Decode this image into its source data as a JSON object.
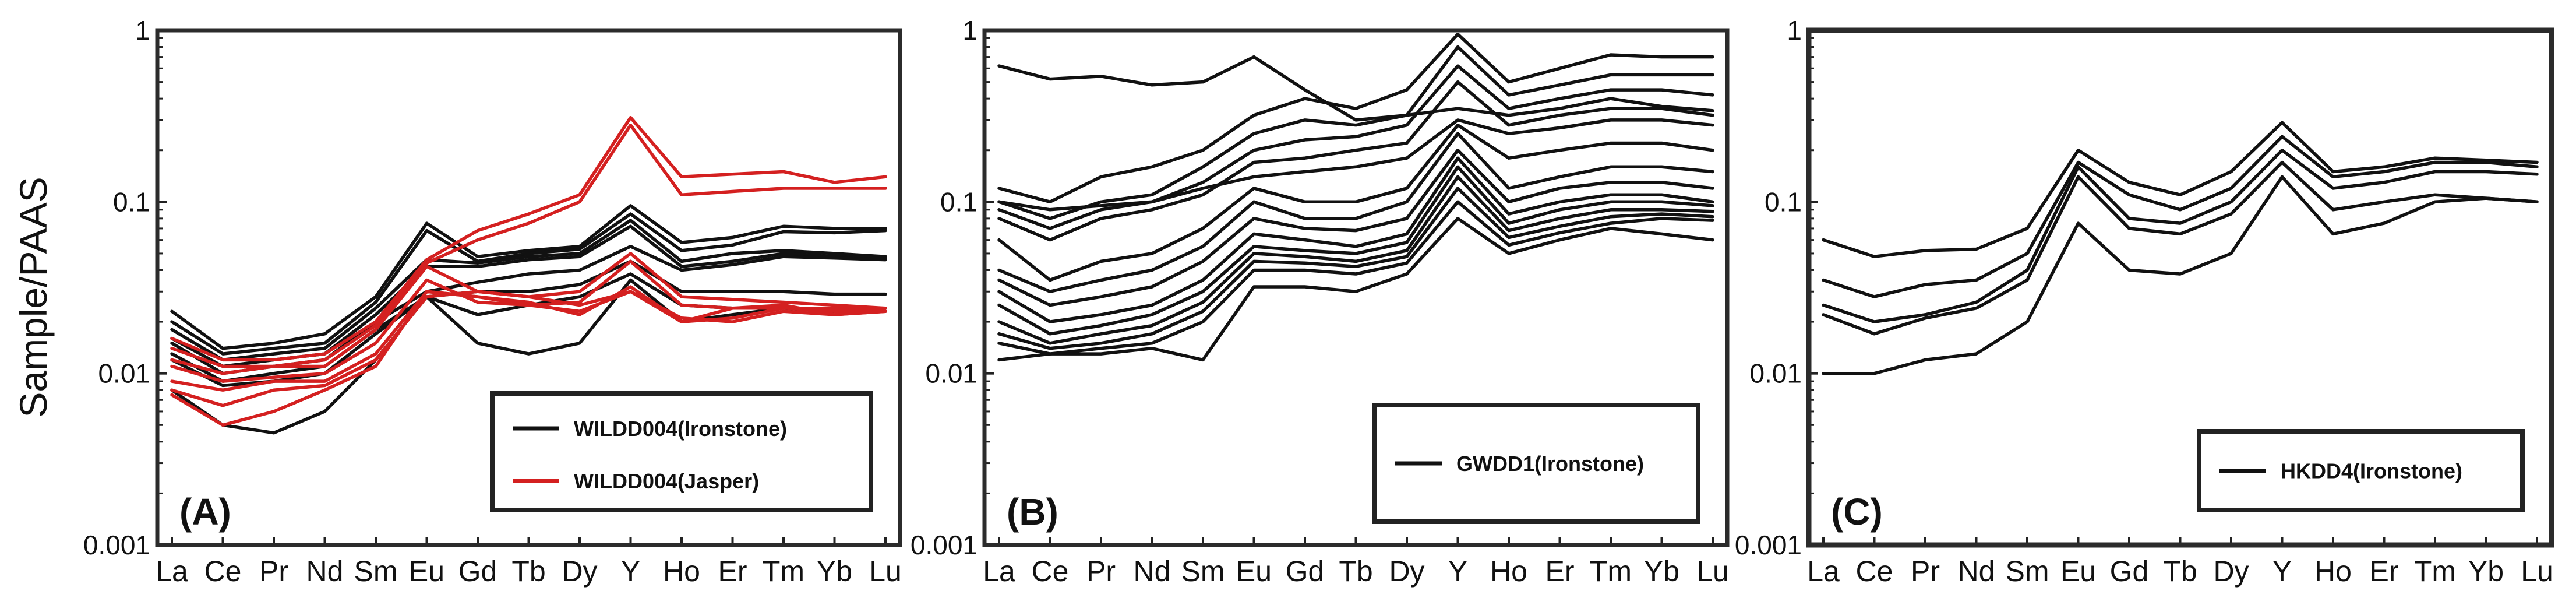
{
  "y_axis_label": "Sample/PAAS",
  "colors": {
    "ironstone": "#111111",
    "jasper": "#d42020",
    "frame": "#2b2b2b"
  },
  "chart_data": [
    {
      "type": "line",
      "panel_label": "(A)",
      "categories": [
        "La",
        "Ce",
        "Pr",
        "Nd",
        "Sm",
        "Eu",
        "Gd",
        "Tb",
        "Dy",
        "Y",
        "Ho",
        "Er",
        "Tm",
        "Yb",
        "Lu"
      ],
      "ylim": [
        0.001,
        1
      ],
      "yscale": "log",
      "y_ticks": [
        "1",
        "0.1",
        "0.01",
        "0.001"
      ],
      "legend_position": "bottom-right",
      "legend": [
        {
          "label": "WILDD004(Ironstone)",
          "color": "#111111"
        },
        {
          "label": "WILDD004(Jasper)",
          "color": "#d42020"
        }
      ],
      "series": [
        {
          "group": "ironstone",
          "values": [
            0.023,
            0.014,
            0.015,
            0.017,
            0.028,
            0.075,
            0.048,
            0.052,
            0.055,
            0.095,
            0.058,
            0.062,
            0.072,
            0.07,
            0.07
          ]
        },
        {
          "group": "ironstone",
          "values": [
            0.02,
            0.013,
            0.014,
            0.015,
            0.026,
            0.068,
            0.045,
            0.05,
            0.053,
            0.085,
            0.052,
            0.056,
            0.067,
            0.066,
            0.068
          ]
        },
        {
          "group": "ironstone",
          "values": [
            0.018,
            0.012,
            0.013,
            0.014,
            0.024,
            0.046,
            0.044,
            0.048,
            0.05,
            0.078,
            0.045,
            0.05,
            0.052,
            0.05,
            0.048
          ]
        },
        {
          "group": "ironstone",
          "values": [
            0.016,
            0.011,
            0.012,
            0.013,
            0.022,
            0.042,
            0.042,
            0.046,
            0.048,
            0.072,
            0.042,
            0.045,
            0.05,
            0.048,
            0.047
          ]
        },
        {
          "group": "ironstone",
          "values": [
            0.015,
            0.01,
            0.011,
            0.012,
            0.02,
            0.03,
            0.034,
            0.038,
            0.04,
            0.055,
            0.04,
            0.043,
            0.048,
            0.047,
            0.046
          ]
        },
        {
          "group": "ironstone",
          "values": [
            0.013,
            0.009,
            0.01,
            0.011,
            0.018,
            0.028,
            0.03,
            0.03,
            0.033,
            0.045,
            0.03,
            0.03,
            0.03,
            0.029,
            0.029
          ]
        },
        {
          "group": "ironstone",
          "values": [
            0.012,
            0.0085,
            0.009,
            0.01,
            0.017,
            0.028,
            0.022,
            0.025,
            0.028,
            0.038,
            0.025,
            0.024,
            0.024,
            0.023,
            0.023
          ]
        },
        {
          "group": "ironstone",
          "values": [
            0.008,
            0.005,
            0.0045,
            0.006,
            0.012,
            0.028,
            0.015,
            0.013,
            0.015,
            0.035,
            0.02,
            0.022,
            0.024,
            0.023,
            0.023
          ]
        },
        {
          "group": "jasper",
          "values": [
            0.016,
            0.012,
            0.012,
            0.013,
            0.02,
            0.046,
            0.068,
            0.085,
            0.11,
            0.31,
            0.14,
            0.145,
            0.15,
            0.13,
            0.14
          ]
        },
        {
          "group": "jasper",
          "values": [
            0.014,
            0.011,
            0.011,
            0.012,
            0.019,
            0.044,
            0.06,
            0.075,
            0.1,
            0.28,
            0.11,
            0.115,
            0.12,
            0.12,
            0.12
          ]
        },
        {
          "group": "jasper",
          "values": [
            0.012,
            0.01,
            0.011,
            0.011,
            0.018,
            0.042,
            0.03,
            0.028,
            0.03,
            0.05,
            0.028,
            0.027,
            0.026,
            0.025,
            0.024
          ]
        },
        {
          "group": "jasper",
          "values": [
            0.011,
            0.009,
            0.0095,
            0.01,
            0.015,
            0.035,
            0.026,
            0.025,
            0.026,
            0.045,
            0.025,
            0.024,
            0.024,
            0.023,
            0.023
          ]
        },
        {
          "group": "jasper",
          "values": [
            0.009,
            0.008,
            0.009,
            0.009,
            0.013,
            0.03,
            0.028,
            0.026,
            0.022,
            0.032,
            0.02,
            0.024,
            0.025,
            0.022,
            0.023
          ]
        },
        {
          "group": "jasper",
          "values": [
            0.008,
            0.0065,
            0.008,
            0.0085,
            0.012,
            0.028,
            0.03,
            0.028,
            0.025,
            0.03,
            0.02,
            0.021,
            0.024,
            0.024,
            0.024
          ]
        },
        {
          "group": "jasper",
          "values": [
            0.0075,
            0.005,
            0.006,
            0.008,
            0.011,
            0.03,
            0.028,
            0.025,
            0.023,
            0.03,
            0.021,
            0.02,
            0.023,
            0.022,
            0.023
          ]
        }
      ]
    },
    {
      "type": "line",
      "panel_label": "(B)",
      "categories": [
        "La",
        "Ce",
        "Pr",
        "Nd",
        "Sm",
        "Eu",
        "Gd",
        "Tb",
        "Dy",
        "Y",
        "Ho",
        "Er",
        "Tm",
        "Yb",
        "Lu"
      ],
      "ylim": [
        0.001,
        1
      ],
      "yscale": "log",
      "y_ticks": [
        "1",
        "0.1",
        "0.01",
        "0.001"
      ],
      "legend_position": "top-right",
      "legend": [
        {
          "label": "GWDD1(Ironstone)",
          "color": "#111111"
        }
      ],
      "series": [
        {
          "group": "ironstone",
          "values": [
            0.62,
            0.52,
            0.54,
            0.48,
            0.5,
            0.7,
            0.45,
            0.3,
            0.32,
            0.35,
            0.32,
            0.35,
            0.4,
            0.36,
            0.34
          ]
        },
        {
          "group": "ironstone",
          "values": [
            0.12,
            0.1,
            0.14,
            0.16,
            0.2,
            0.32,
            0.4,
            0.35,
            0.45,
            0.95,
            0.5,
            0.6,
            0.72,
            0.7,
            0.7
          ]
        },
        {
          "group": "ironstone",
          "values": [
            0.1,
            0.08,
            0.1,
            0.11,
            0.16,
            0.25,
            0.3,
            0.28,
            0.32,
            0.8,
            0.42,
            0.48,
            0.55,
            0.55,
            0.55
          ]
        },
        {
          "group": "ironstone",
          "values": [
            0.09,
            0.07,
            0.09,
            0.1,
            0.13,
            0.2,
            0.23,
            0.24,
            0.28,
            0.62,
            0.35,
            0.4,
            0.45,
            0.45,
            0.42
          ]
        },
        {
          "group": "ironstone",
          "values": [
            0.08,
            0.06,
            0.08,
            0.09,
            0.11,
            0.17,
            0.18,
            0.2,
            0.22,
            0.5,
            0.28,
            0.32,
            0.35,
            0.35,
            0.32
          ]
        },
        {
          "group": "ironstone",
          "values": [
            0.1,
            0.09,
            0.095,
            0.1,
            0.12,
            0.14,
            0.15,
            0.16,
            0.18,
            0.3,
            0.25,
            0.27,
            0.3,
            0.3,
            0.28
          ]
        },
        {
          "group": "ironstone",
          "values": [
            0.06,
            0.035,
            0.045,
            0.05,
            0.07,
            0.12,
            0.1,
            0.1,
            0.12,
            0.28,
            0.18,
            0.2,
            0.22,
            0.22,
            0.2
          ]
        },
        {
          "group": "ironstone",
          "values": [
            0.04,
            0.03,
            0.035,
            0.04,
            0.055,
            0.1,
            0.08,
            0.08,
            0.1,
            0.25,
            0.12,
            0.14,
            0.16,
            0.16,
            0.15
          ]
        },
        {
          "group": "ironstone",
          "values": [
            0.035,
            0.025,
            0.028,
            0.032,
            0.045,
            0.08,
            0.07,
            0.068,
            0.08,
            0.2,
            0.1,
            0.12,
            0.13,
            0.13,
            0.12
          ]
        },
        {
          "group": "ironstone",
          "values": [
            0.03,
            0.02,
            0.022,
            0.025,
            0.035,
            0.065,
            0.06,
            0.055,
            0.065,
            0.18,
            0.085,
            0.1,
            0.11,
            0.11,
            0.1
          ]
        },
        {
          "group": "ironstone",
          "values": [
            0.025,
            0.017,
            0.019,
            0.022,
            0.03,
            0.055,
            0.052,
            0.05,
            0.058,
            0.16,
            0.075,
            0.09,
            0.1,
            0.1,
            0.095
          ]
        },
        {
          "group": "ironstone",
          "values": [
            0.02,
            0.015,
            0.017,
            0.019,
            0.026,
            0.05,
            0.048,
            0.045,
            0.052,
            0.14,
            0.068,
            0.08,
            0.09,
            0.09,
            0.088
          ]
        },
        {
          "group": "ironstone",
          "values": [
            0.017,
            0.014,
            0.015,
            0.017,
            0.023,
            0.045,
            0.044,
            0.042,
            0.048,
            0.12,
            0.062,
            0.072,
            0.082,
            0.085,
            0.082
          ]
        },
        {
          "group": "ironstone",
          "values": [
            0.015,
            0.013,
            0.014,
            0.015,
            0.02,
            0.04,
            0.04,
            0.038,
            0.044,
            0.1,
            0.056,
            0.066,
            0.075,
            0.08,
            0.078
          ]
        },
        {
          "group": "ironstone",
          "values": [
            0.012,
            0.013,
            0.013,
            0.014,
            0.012,
            0.032,
            0.032,
            0.03,
            0.038,
            0.08,
            0.05,
            0.06,
            0.07,
            0.065,
            0.06
          ]
        }
      ]
    },
    {
      "type": "line",
      "panel_label": "(C)",
      "categories": [
        "La",
        "Ce",
        "Pr",
        "Nd",
        "Sm",
        "Eu",
        "Gd",
        "Tb",
        "Dy",
        "Y",
        "Ho",
        "Er",
        "Tm",
        "Yb",
        "Lu"
      ],
      "ylim": [
        0.001,
        1
      ],
      "yscale": "log",
      "y_ticks": [
        "1",
        "0.1",
        "0.01",
        "0.001"
      ],
      "legend_position": "bottom-right",
      "legend": [
        {
          "label": "HKDD4(Ironstone)",
          "color": "#111111"
        }
      ],
      "series": [
        {
          "group": "ironstone",
          "values": [
            0.06,
            0.048,
            0.052,
            0.053,
            0.07,
            0.2,
            0.13,
            0.11,
            0.15,
            0.29,
            0.15,
            0.16,
            0.18,
            0.175,
            0.17
          ]
        },
        {
          "group": "ironstone",
          "values": [
            0.035,
            0.028,
            0.033,
            0.035,
            0.05,
            0.17,
            0.11,
            0.09,
            0.12,
            0.24,
            0.14,
            0.15,
            0.17,
            0.17,
            0.16
          ]
        },
        {
          "group": "ironstone",
          "values": [
            0.025,
            0.02,
            0.022,
            0.026,
            0.04,
            0.16,
            0.08,
            0.075,
            0.1,
            0.2,
            0.12,
            0.13,
            0.15,
            0.15,
            0.145
          ]
        },
        {
          "group": "ironstone",
          "values": [
            0.022,
            0.017,
            0.021,
            0.024,
            0.035,
            0.14,
            0.07,
            0.065,
            0.085,
            0.17,
            0.09,
            0.1,
            0.11,
            0.105,
            0.1
          ]
        },
        {
          "group": "ironstone",
          "values": [
            0.01,
            0.01,
            0.012,
            0.013,
            0.02,
            0.075,
            0.04,
            0.038,
            0.05,
            0.14,
            0.065,
            0.075,
            0.1,
            0.105,
            0.1
          ]
        }
      ]
    }
  ]
}
